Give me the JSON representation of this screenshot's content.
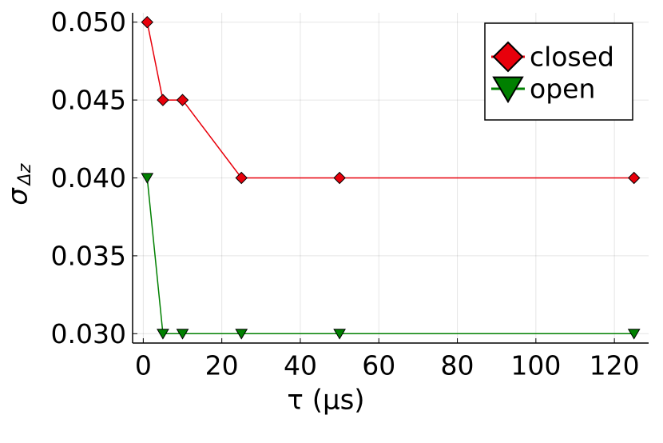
{
  "chart_data": {
    "type": "line",
    "xlabel": "τ (μs)",
    "ylabel": "σ",
    "ylabel_subscript": "Δz",
    "x": [
      1,
      5,
      10,
      25,
      50,
      125
    ],
    "series": [
      {
        "name": "closed",
        "color": "#e8000b",
        "marker": "diamond",
        "values": [
          0.05,
          0.045,
          0.045,
          0.04,
          0.04,
          0.04
        ]
      },
      {
        "name": "open",
        "color": "#008000",
        "marker": "triangle-down",
        "values": [
          0.04,
          0.03,
          0.03,
          0.03,
          0.03,
          0.03
        ]
      }
    ],
    "xlim": [
      -2.72,
      128.72
    ],
    "xticks": [
      0,
      20,
      40,
      60,
      80,
      100,
      120
    ],
    "ylim": [
      0.0294,
      0.0506
    ],
    "yticks": [
      {
        "value": 0.03,
        "label": "0.030"
      },
      {
        "value": 0.035,
        "label": "0.035"
      },
      {
        "value": 0.04,
        "label": "0.040"
      },
      {
        "value": 0.045,
        "label": "0.045"
      },
      {
        "value": 0.05,
        "label": "0.050"
      }
    ],
    "grid": true,
    "legend": "top-right"
  }
}
